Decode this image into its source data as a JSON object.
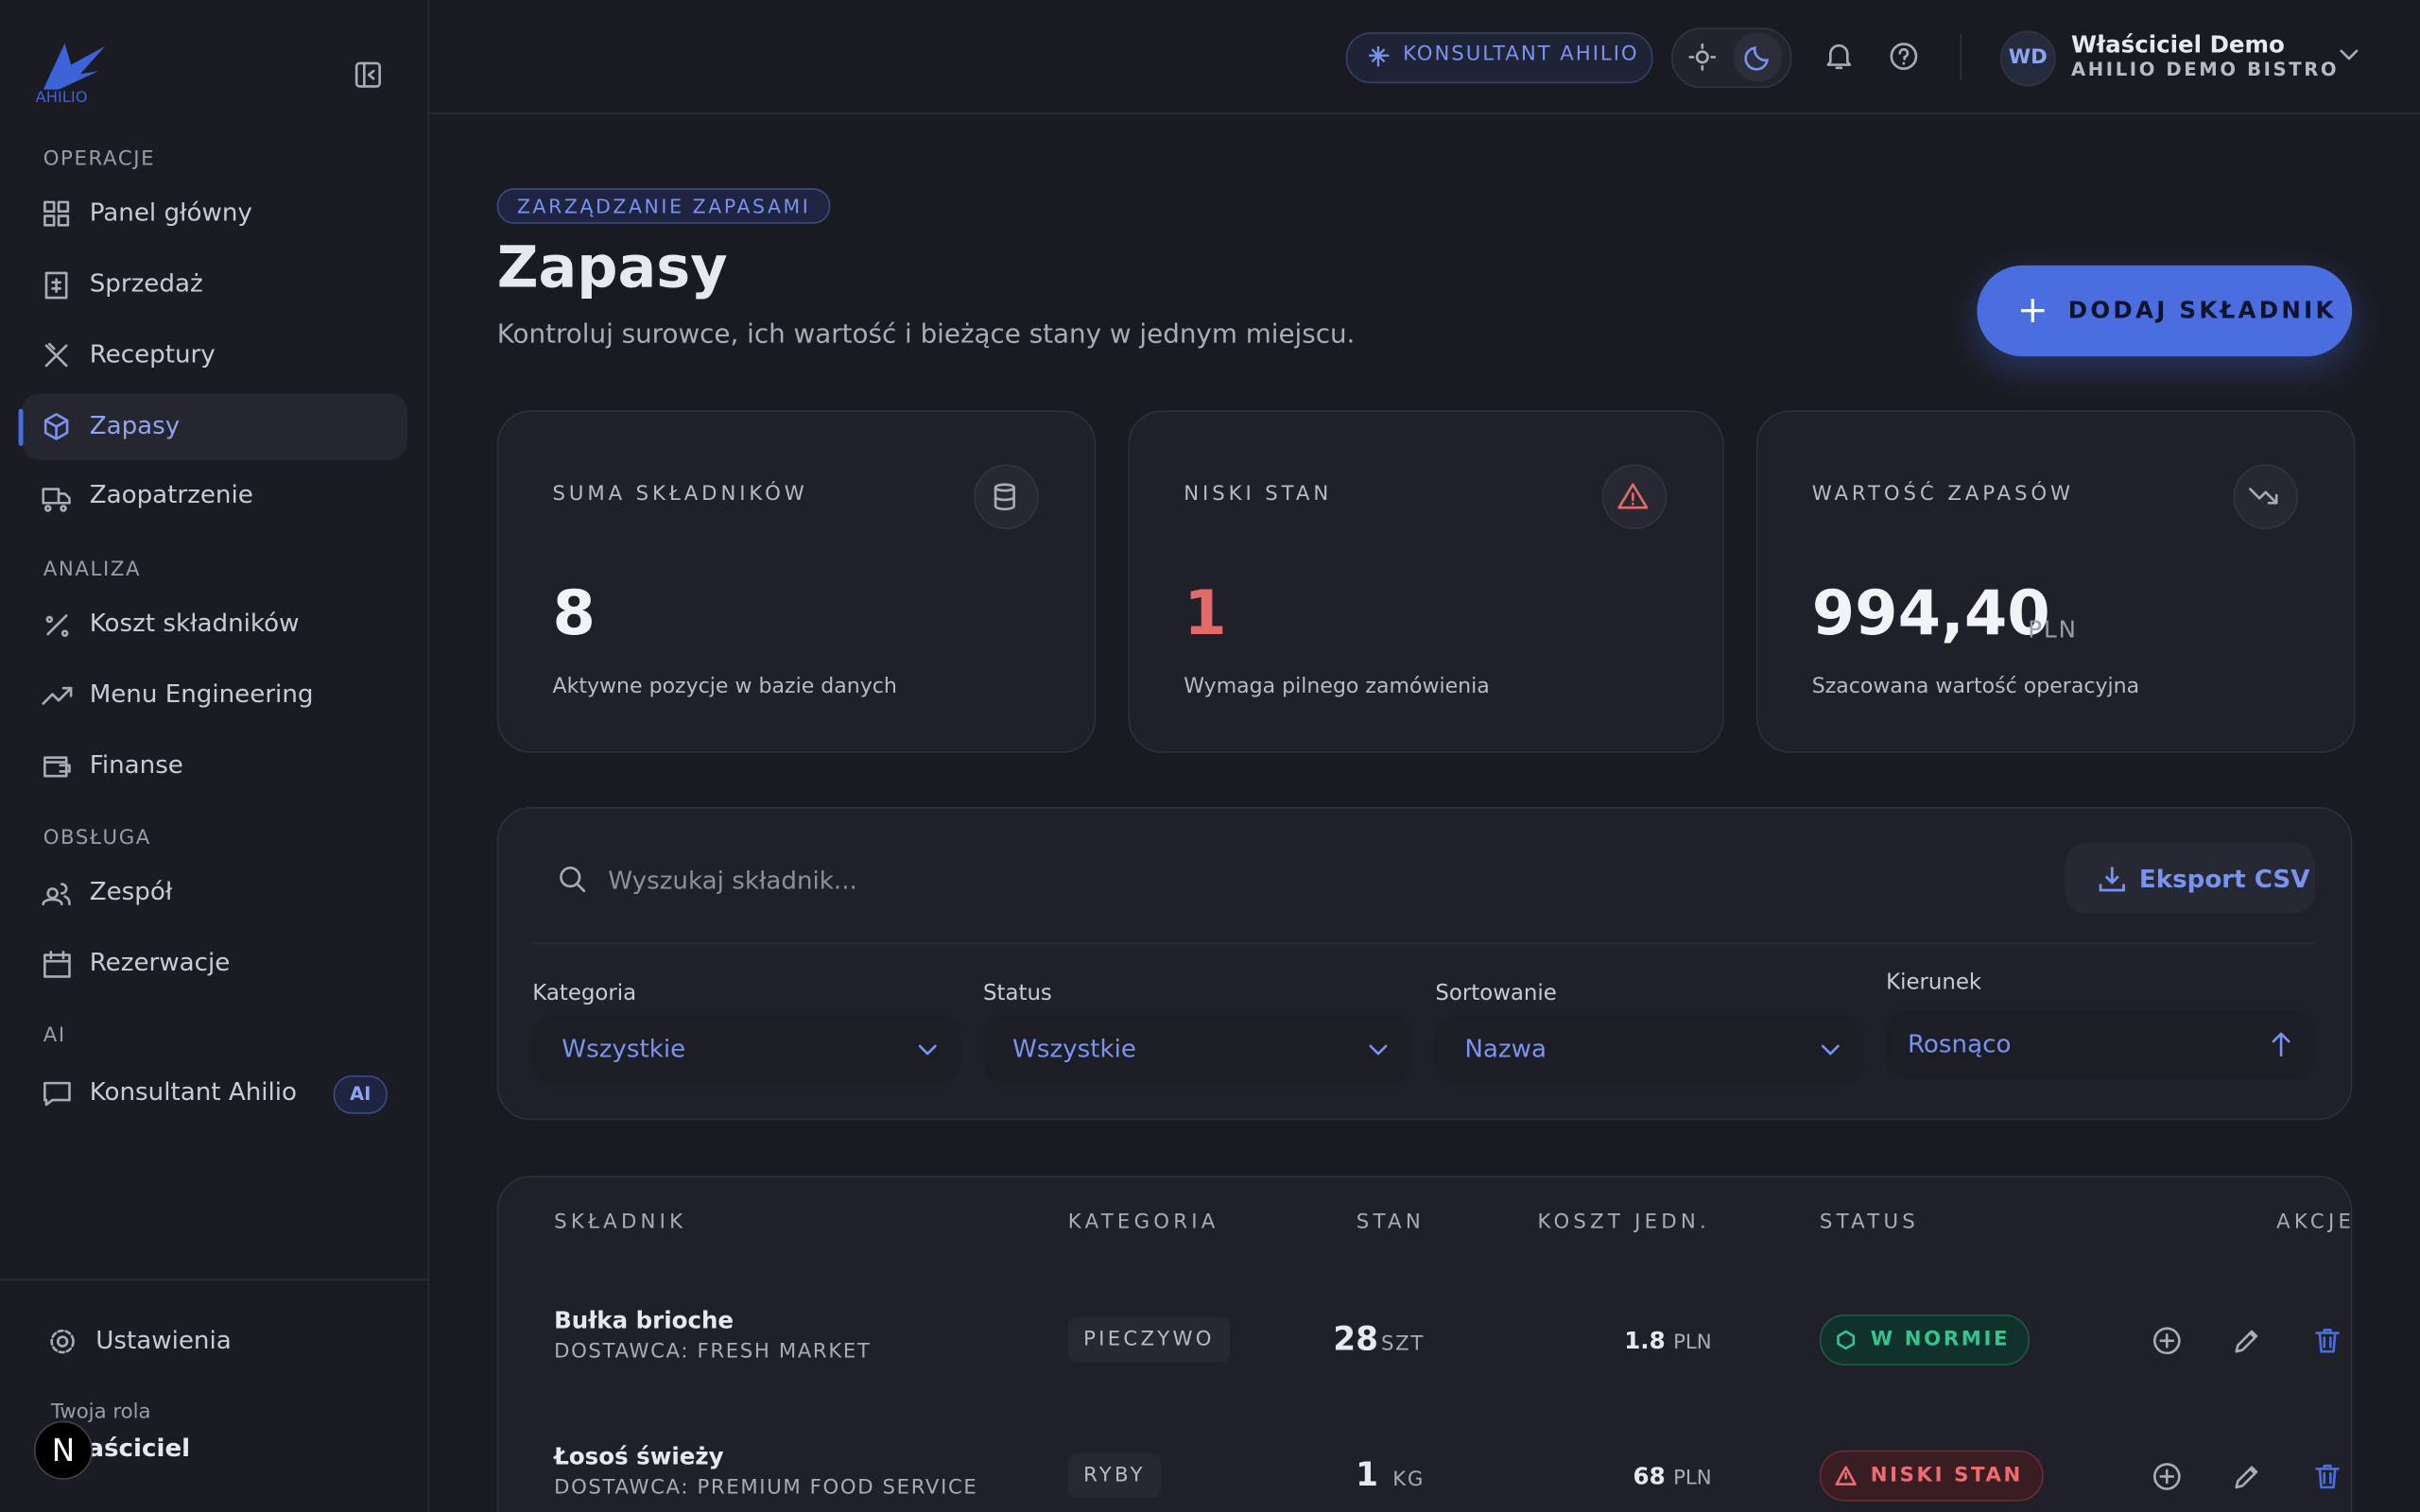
{
  "brand": "AHILIO",
  "sidebar": {
    "sections": [
      {
        "title": "OPERACJE",
        "items": [
          "Panel główny",
          "Sprzedaż",
          "Receptury",
          "Zapasy",
          "Zaopatrzenie"
        ]
      },
      {
        "title": "ANALIZA",
        "items": [
          "Koszt składników",
          "Menu Engineering",
          "Finanse"
        ]
      },
      {
        "title": "OBSŁUGA",
        "items": [
          "Zespół",
          "Rezerwacje"
        ]
      },
      {
        "title": "AI",
        "items": [
          "Konsultant Ahilio"
        ]
      }
    ],
    "ai_badge": "AI",
    "settings": "Ustawienia",
    "role_label": "Twoja rola",
    "role": "Właściciel"
  },
  "header": {
    "consultant": "KONSULTANT AHILIO",
    "avatar": "WD",
    "user_name": "Właściciel Demo",
    "org": "AHILIO DEMO BISTRO"
  },
  "page": {
    "eyebrow": "ZARZĄDZANIE ZAPASAMI",
    "title": "Zapasy",
    "subtitle": "Kontroluj surowce, ich wartość i bieżące stany w jednym miejscu.",
    "add_button": "DODAJ SKŁADNIK"
  },
  "stats": [
    {
      "label": "SUMA SKŁADNIKÓW",
      "value": 8,
      "note": "Aktywne pozycje w bazie danych"
    },
    {
      "label": "NISKI STAN",
      "value": 1,
      "note": "Wymaga pilnego zamówienia"
    },
    {
      "label": "WARTOŚĆ ZAPASÓW",
      "value": "994,40",
      "unit": "PLN",
      "note": "Szacowana wartość operacyjna"
    }
  ],
  "filters": {
    "search_placeholder": "Wyszukaj składnik...",
    "export": "Eksport CSV",
    "fields": [
      {
        "label": "Kategoria",
        "value": "Wszystkie"
      },
      {
        "label": "Status",
        "value": "Wszystkie"
      },
      {
        "label": "Sortowanie",
        "value": "Nazwa"
      },
      {
        "label": "Kierunek",
        "value": "Rosnąco"
      }
    ]
  },
  "table": {
    "headers": [
      "SKŁADNIK",
      "KATEGORIA",
      "STAN",
      "KOSZT JEDN.",
      "STATUS",
      "AKCJE"
    ],
    "rows": [
      {
        "name": "Bułka brioche",
        "supplier": "DOSTAWCA: FRESH MARKET",
        "category": "PIECZYWO",
        "stock": 28,
        "stock_unit": "SZT",
        "cost": 1.8,
        "cost_unit": "PLN",
        "status": "W NORMIE"
      },
      {
        "name": "Łosoś świeży",
        "supplier": "DOSTAWCA: PREMIUM FOOD SERVICE",
        "category": "RYBY",
        "stock": 1,
        "stock_unit": "KG",
        "cost": 68,
        "cost_unit": "PLN",
        "status": "NISKI STAN"
      }
    ]
  }
}
